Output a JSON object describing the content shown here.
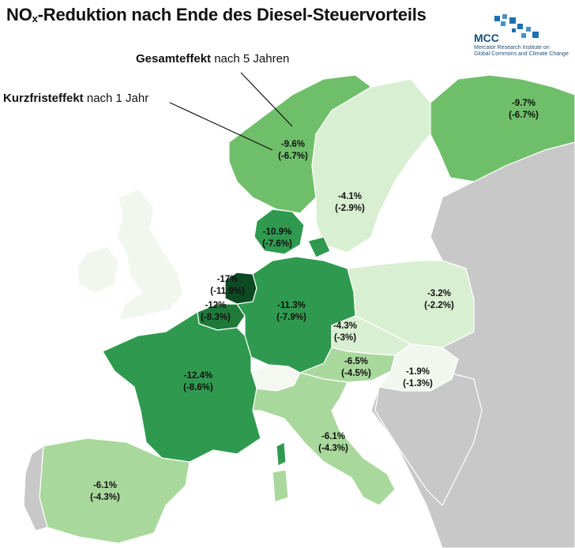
{
  "title_main": "NO",
  "title_sub": "x",
  "title_rest": "-Reduktion nach Ende des Diesel-Steuervorteils",
  "logo": {
    "name": "MCC",
    "line1": "Mercator Research Institute on",
    "line2": "Global Commons and Climate Change"
  },
  "legend": {
    "total_bold": "Gesamteffekt",
    "total_rest": " nach 5 Jahren",
    "short_bold": "Kurzfristeffekt",
    "short_rest": " nach 1 Jahr"
  },
  "colors": {
    "sea": "#ffffff",
    "non_eu": "#c8c8c8",
    "border": "#ffffff",
    "scale_lightest": "#f1f7ee",
    "scale_light": "#d9efd2",
    "scale_mid_light": "#a9d89c",
    "scale_mid": "#6fbf6a",
    "scale_dark": "#2f9a4f",
    "scale_darker": "#1f7a3a",
    "scale_darkest": "#0b4a22"
  },
  "countries": [
    {
      "name": "Norway",
      "total": "-9.6%",
      "short": "(-6.7%)"
    },
    {
      "name": "Finland",
      "total": "-9.7%",
      "short": "(-6.7%)"
    },
    {
      "name": "Sweden",
      "total": "-4.1%",
      "short": "(-2.9%)"
    },
    {
      "name": "Denmark",
      "total": "-10.9%",
      "short": "(-7.6%)"
    },
    {
      "name": "Netherlands",
      "total": "-17%",
      "short": "(-11.9%)"
    },
    {
      "name": "Belgium",
      "total": "-12%",
      "short": "(-8.3%)"
    },
    {
      "name": "Germany",
      "total": "-11.3%",
      "short": "(-7.9%)"
    },
    {
      "name": "Poland",
      "total": "-3.2%",
      "short": "(-2.2%)"
    },
    {
      "name": "Czechia",
      "total": "-4.3%",
      "short": "(-3%)"
    },
    {
      "name": "Austria",
      "total": "-6.5%",
      "short": "(-4.5%)"
    },
    {
      "name": "Hungary",
      "total": "-1.9%",
      "short": "(-1.3%)"
    },
    {
      "name": "France",
      "total": "-12.4%",
      "short": "(-8.6%)"
    },
    {
      "name": "Italy",
      "total": "-6.1%",
      "short": "(-4.3%)"
    },
    {
      "name": "Spain",
      "total": "-6.1%",
      "short": "(-4.3%)"
    }
  ]
}
